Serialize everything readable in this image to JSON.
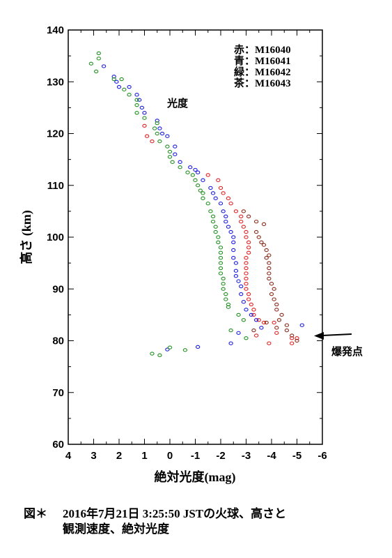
{
  "chart_data": {
    "type": "scatter",
    "xlabel": "絶対光度(mag)",
    "ylabel": "高さ (km)",
    "xlim": [
      4,
      -6
    ],
    "ylim": [
      60,
      140
    ],
    "x_ticks": [
      "4",
      "3",
      "2",
      "1",
      "0",
      "-1",
      "-2",
      "-3",
      "-4",
      "-5",
      "-6"
    ],
    "y_ticks": [
      "60",
      "70",
      "80",
      "90",
      "100",
      "110",
      "120",
      "130",
      "140"
    ],
    "legend": [
      "赤：M16040",
      "青：M16041",
      "緑：M16042",
      "茶：M16043"
    ],
    "legend_placement": "top-right",
    "annotations": {
      "luminosity": "光度",
      "explosion": "爆発点",
      "explosion_point": {
        "x": -5.4,
        "y": 81.5
      }
    },
    "series": [
      {
        "color": "#e02020",
        "points": [
          [
            1.0,
            121.5
          ],
          [
            0.9,
            119.5
          ],
          [
            0.7,
            118.5
          ],
          [
            -1.5,
            112
          ],
          [
            -1.9,
            111
          ],
          [
            -2.0,
            109.5
          ],
          [
            -2.1,
            108.5
          ],
          [
            -2.3,
            107.5
          ],
          [
            -2.4,
            106.5
          ],
          [
            -2.6,
            105
          ],
          [
            -2.8,
            104
          ],
          [
            -2.8,
            103
          ],
          [
            -2.9,
            102
          ],
          [
            -3.0,
            101
          ],
          [
            -3.0,
            100
          ],
          [
            -3.1,
            99
          ],
          [
            -3.1,
            98
          ],
          [
            -3.1,
            97
          ],
          [
            -3.0,
            96
          ],
          [
            -3.0,
            95
          ],
          [
            -3.0,
            94
          ],
          [
            -3.0,
            93
          ],
          [
            -3.0,
            92
          ],
          [
            -3.0,
            91
          ],
          [
            -3.0,
            90
          ],
          [
            -3.1,
            89
          ],
          [
            -3.1,
            88
          ],
          [
            -3.2,
            87
          ],
          [
            -3.3,
            86
          ],
          [
            -3.3,
            85
          ],
          [
            -3.5,
            84
          ],
          [
            -3.7,
            83.5
          ],
          [
            -4.1,
            83.5
          ],
          [
            -4.8,
            80.5
          ],
          [
            -5.0,
            80.5
          ],
          [
            -4.8,
            79.5
          ],
          [
            -3.4,
            81
          ],
          [
            -3.9,
            79.5
          ],
          [
            -4.2,
            81.5
          ]
        ]
      },
      {
        "color": "#1a1ae0",
        "points": [
          [
            2.6,
            133
          ],
          [
            2.2,
            131
          ],
          [
            2.1,
            130
          ],
          [
            2.0,
            129
          ],
          [
            1.6,
            129
          ],
          [
            1.3,
            127.5
          ],
          [
            1.2,
            126.5
          ],
          [
            1.1,
            125
          ],
          [
            1.0,
            124
          ],
          [
            0.5,
            122.5
          ],
          [
            0.4,
            121
          ],
          [
            0.3,
            120
          ],
          [
            0.1,
            119.5
          ],
          [
            -0.2,
            117.5
          ],
          [
            -0.2,
            116
          ],
          [
            -0.4,
            114.5
          ],
          [
            -0.8,
            113.5
          ],
          [
            -1.0,
            113
          ],
          [
            -1.1,
            112.5
          ],
          [
            -1.3,
            111
          ],
          [
            -1.6,
            109.5
          ],
          [
            -1.7,
            108.5
          ],
          [
            -1.8,
            107.5
          ],
          [
            -2.0,
            106.5
          ],
          [
            -2.1,
            105
          ],
          [
            -2.2,
            104
          ],
          [
            -2.2,
            103
          ],
          [
            -2.3,
            102
          ],
          [
            -2.4,
            101
          ],
          [
            -2.5,
            100
          ],
          [
            -2.5,
            99
          ],
          [
            -2.5,
            97.5
          ],
          [
            -2.5,
            96
          ],
          [
            -2.6,
            95
          ],
          [
            -2.6,
            93.5
          ],
          [
            -2.6,
            92.5
          ],
          [
            -2.7,
            91.5
          ],
          [
            -2.8,
            90.5
          ],
          [
            -2.8,
            89
          ],
          [
            -2.9,
            87.5
          ],
          [
            -3.0,
            86
          ],
          [
            -3.2,
            85
          ],
          [
            -3.4,
            84
          ],
          [
            -3.6,
            82.5
          ],
          [
            -5.2,
            83
          ],
          [
            -2.7,
            81.5
          ],
          [
            -2.4,
            79.5
          ],
          [
            -1.1,
            78.8
          ],
          [
            0.1,
            78.3
          ]
        ]
      },
      {
        "color": "#209020",
        "points": [
          [
            2.8,
            135.5
          ],
          [
            2.8,
            134.5
          ],
          [
            3.1,
            133.5
          ],
          [
            2.9,
            132
          ],
          [
            1.9,
            130.5
          ],
          [
            2.2,
            130.5
          ],
          [
            1.8,
            128.5
          ],
          [
            1.6,
            127.5
          ],
          [
            1.3,
            126.5
          ],
          [
            1.3,
            125.5
          ],
          [
            1.3,
            124
          ],
          [
            1.0,
            123
          ],
          [
            0.5,
            122
          ],
          [
            0.6,
            121
          ],
          [
            0.5,
            120
          ],
          [
            0.4,
            118.5
          ],
          [
            0.1,
            117.5
          ],
          [
            0.0,
            116.5
          ],
          [
            0.0,
            115.5
          ],
          [
            -0.1,
            114.5
          ],
          [
            -0.4,
            113.5
          ],
          [
            -0.7,
            112.5
          ],
          [
            -0.9,
            112
          ],
          [
            -1.0,
            111
          ],
          [
            -1.1,
            110
          ],
          [
            -1.2,
            109
          ],
          [
            -1.3,
            108.5
          ],
          [
            -1.3,
            107.5
          ],
          [
            -1.5,
            106.5
          ],
          [
            -1.6,
            105
          ],
          [
            -1.7,
            104
          ],
          [
            -1.7,
            103
          ],
          [
            -1.8,
            102
          ],
          [
            -1.8,
            101
          ],
          [
            -1.9,
            100
          ],
          [
            -1.9,
            99
          ],
          [
            -2.0,
            98
          ],
          [
            -2.0,
            97
          ],
          [
            -2.0,
            96
          ],
          [
            -2.0,
            95
          ],
          [
            -2.0,
            94
          ],
          [
            -2.0,
            93
          ],
          [
            -2.1,
            92
          ],
          [
            -2.1,
            91
          ],
          [
            -2.1,
            90
          ],
          [
            -2.2,
            89
          ],
          [
            -2.2,
            88
          ],
          [
            -2.3,
            87
          ],
          [
            -2.3,
            86.5
          ],
          [
            -2.7,
            85
          ],
          [
            -2.9,
            84
          ],
          [
            -2.4,
            82
          ],
          [
            -3.0,
            80.5
          ],
          [
            -0.6,
            78.2
          ],
          [
            0.0,
            78.7
          ],
          [
            0.4,
            77.2
          ],
          [
            0.7,
            77.5
          ]
        ]
      },
      {
        "color": "#8a2a1a",
        "points": [
          [
            -2.9,
            105
          ],
          [
            -3.1,
            104
          ],
          [
            -3.4,
            103
          ],
          [
            -3.7,
            102.5
          ],
          [
            -3.4,
            101
          ],
          [
            -3.5,
            100
          ],
          [
            -3.6,
            99
          ],
          [
            -3.7,
            98.5
          ],
          [
            -3.8,
            97.5
          ],
          [
            -3.9,
            96.5
          ],
          [
            -3.8,
            96
          ],
          [
            -3.9,
            95
          ],
          [
            -3.9,
            94
          ],
          [
            -3.9,
            93
          ],
          [
            -3.9,
            92
          ],
          [
            -4.0,
            91
          ],
          [
            -4.1,
            90
          ],
          [
            -4.0,
            89
          ],
          [
            -4.1,
            88
          ],
          [
            -4.2,
            87
          ],
          [
            -4.2,
            86
          ],
          [
            -4.4,
            85
          ],
          [
            -4.3,
            84
          ],
          [
            -3.8,
            83.5
          ],
          [
            -4.2,
            82.5
          ],
          [
            -4.6,
            83
          ],
          [
            -4.6,
            82
          ],
          [
            -4.8,
            81
          ],
          [
            -5.0,
            80
          ],
          [
            -3.3,
            82
          ]
        ]
      }
    ]
  },
  "caption": {
    "label": "図＊",
    "line1": "2016年7月21日 3:25:50 JSTの火球、高さと",
    "line2": "観測速度、絶対光度"
  }
}
